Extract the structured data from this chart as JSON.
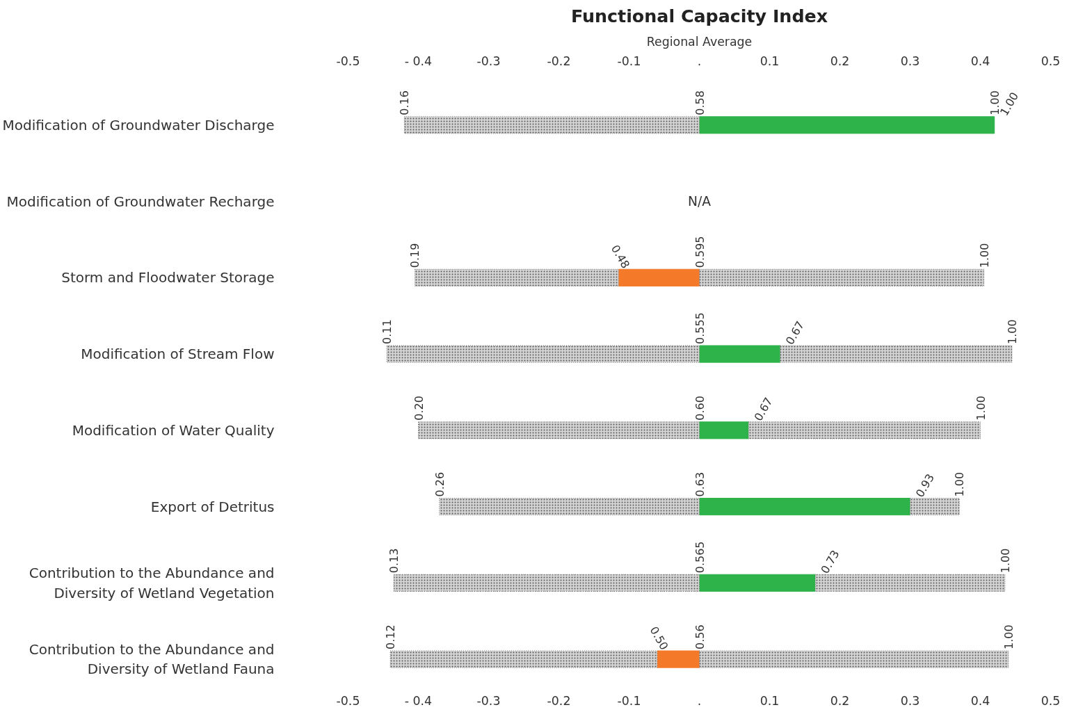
{
  "chart_data": {
    "type": "bar",
    "orientation": "horizontal",
    "stacked": true,
    "title": "Functional Capacity Index",
    "subtitle": "Regional Average",
    "categories": [
      "Modification of Groundwater Discharge",
      "Modification of Groundwater Recharge",
      "Storm and Floodwater Storage",
      "Modification of Stream Flow",
      "Modification of Water Quality",
      "Export of Detritus",
      "Contribution to the Abundance and\nDiversity of Wetland Vegetation",
      "Contribution to the Abundance and\nDiversity of Wetland Fauna"
    ],
    "series": [
      {
        "colors": [
          "#2db34a",
          null,
          "#f47a2a",
          "#2db34a",
          "#2db34a",
          "#2db34a",
          "#2db34a",
          "#f47a2a"
        ],
        "values": [
          0.42,
          null,
          -0.115,
          0.115,
          0.07,
          0.3,
          0.165,
          -0.06
        ]
      },
      {
        "color": "#d4d4d4",
        "values": [
          -0.42,
          null,
          -0.29,
          -0.445,
          -0.4,
          -0.37,
          -0.435,
          -0.38
        ]
      },
      {
        "color": "#d4d4d4",
        "values": [
          0,
          null,
          0.405,
          0.33,
          0.33,
          0.07,
          0.27,
          0.44
        ]
      }
    ],
    "xlim": [
      -0.5,
      0.5
    ],
    "xticks": [
      -0.5,
      {
        "value": -0.4,
        "label": "- 0.4"
      },
      -0.3,
      -0.2,
      -0.1,
      {
        "value": 0,
        "label": "."
      },
      0.1,
      0.2,
      0.3,
      0.4,
      0.5
    ],
    "x2lim": [
      -0.5,
      0.5
    ],
    "x2ticks": [
      -0.5,
      {
        "value": -0.4,
        "label": "- 0.4"
      },
      -0.3,
      -0.2,
      -0.1,
      {
        "value": 0,
        "label": "."
      },
      0.1,
      0.2,
      0.3,
      0.4,
      0.5
    ],
    "annotations": [
      {
        "text": "0.16",
        "x": -0.42,
        "y": "Modification of Groundwater Discharge"
      },
      {
        "text": "0.58",
        "x": 0,
        "y": "Modification of Groundwater Discharge"
      },
      {
        "text": "1.00",
        "x": 0.42,
        "y": "Modification of Groundwater Discharge"
      },
      {
        "text": "1.00",
        "x": 0.42,
        "y": "Modification of Groundwater Discharge"
      },
      "N/A",
      {
        "text": "0.19",
        "x": -0.405,
        "y": "Storm and Floodwater Storage"
      },
      {
        "text": "0.48",
        "x": -0.115,
        "y": "Storm and Floodwater Storage"
      },
      {
        "text": "0.595",
        "x": 0,
        "y": "Storm and Floodwater Storage"
      },
      {
        "text": "1.00",
        "x": 0.405,
        "y": "Storm and Floodwater Storage"
      },
      {
        "text": "0.11",
        "x": -0.445,
        "y": "Modification of Stream Flow"
      },
      {
        "text": "0.555",
        "x": 0,
        "y": "Modification of Stream Flow"
      },
      {
        "text": "0.67",
        "x": 0.115,
        "y": "Modification of Stream Flow"
      },
      {
        "text": "1.00",
        "x": 0.445,
        "y": "Modification of Stream Flow"
      },
      {
        "text": "0.20",
        "x": -0.4,
        "y": "Modification of Water Quality"
      },
      {
        "text": "0.60",
        "x": 0,
        "y": "Modification of Water Quality"
      },
      {
        "text": "0.67",
        "x": 0.07,
        "y": "Modification of Water Quality"
      },
      {
        "text": "1.00",
        "x": 0.4,
        "y": "Modification of Water Quality"
      },
      {
        "text": "0.26",
        "x": -0.37,
        "y": "Export of Detritus"
      },
      {
        "text": "0.63",
        "x": 0,
        "y": "Export of Detritus"
      },
      {
        "text": "0.93",
        "x": 0.3,
        "y": "Export of Detritus"
      },
      {
        "text": "1.00",
        "x": 0.37,
        "y": "Export of Detritus"
      },
      {
        "text": "0.13",
        "x": -0.435,
        "y": "Contribution to the Abundance and\nDiversity of Wetland Vegetation"
      },
      {
        "text": "0.565",
        "x": 0,
        "y": "Contribution to the Abundance and\nDiversity of Wetland Vegetation"
      },
      {
        "text": "0.73",
        "x": 0.165,
        "y": "Contribution to the Abundance and\nDiversity of Wetland Vegetation"
      },
      {
        "text": "1.00",
        "x": 0.435,
        "y": "Contribution to the Abundance and\nDiversity of Wetland Vegetation"
      },
      {
        "text": "0.12",
        "x": -0.44,
        "y": "Contribution to the Abundance and\nDiversity of Wetland Fauna"
      },
      {
        "text": "0.50",
        "x": -0.06,
        "y": "Contribution to the Abundance and\nDiversity of Wetland Fauna"
      },
      {
        "text": "0.56",
        "x": 0,
        "y": "Contribution to the Abundance and\nDiversity of Wetland Fauna"
      },
      {
        "text": "1.00",
        "x": 0.44,
        "y": "Contribution to the Abundance and\nDiversity of Wetland Fauna"
      }
    ]
  }
}
